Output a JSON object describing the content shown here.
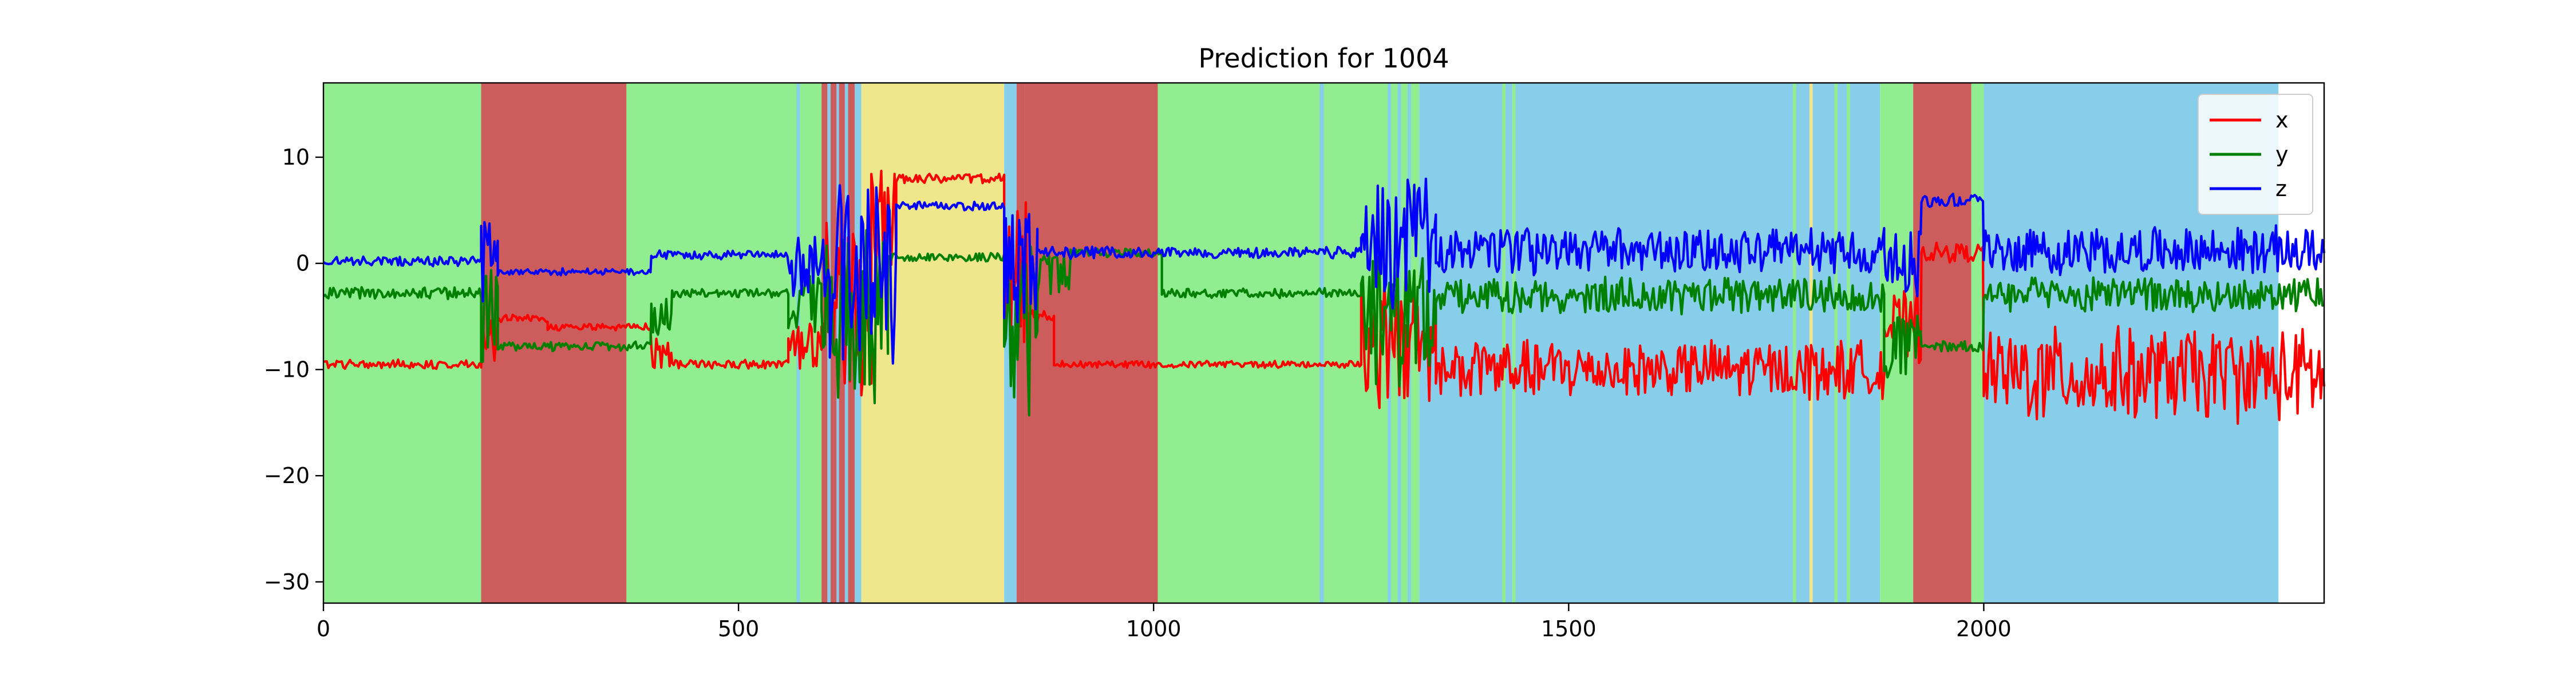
{
  "chart_data": {
    "type": "line",
    "title": "Prediction for 1004",
    "xlabel": "",
    "ylabel": "",
    "xlim": [
      0,
      2410
    ],
    "ylim": [
      -32,
      17
    ],
    "x_ticks": [
      0,
      500,
      1000,
      1500,
      2000
    ],
    "y_ticks": [
      -30,
      -20,
      -10,
      0,
      10
    ],
    "x_tick_labels": [
      "0",
      "500",
      "1000",
      "1500",
      "2000"
    ],
    "y_tick_labels": [
      "−30",
      "−20",
      "−10",
      "0",
      "10"
    ],
    "grid": false,
    "legend_position": "top-right",
    "background_regions": [
      {
        "x0": 0,
        "x1": 190,
        "color": "#90ee90"
      },
      {
        "x0": 190,
        "x1": 365,
        "color": "#cd5c5c"
      },
      {
        "x0": 365,
        "x1": 600,
        "color": "#90ee90"
      },
      {
        "x0": 570,
        "x1": 574,
        "color": "#87ceeb"
      },
      {
        "x0": 600,
        "x1": 640,
        "color": "#cd5c5c"
      },
      {
        "x0": 607,
        "x1": 611,
        "color": "#87ceeb"
      },
      {
        "x0": 618,
        "x1": 621,
        "color": "#87ceeb"
      },
      {
        "x0": 628,
        "x1": 632,
        "color": "#87ceeb"
      },
      {
        "x0": 640,
        "x1": 648,
        "color": "#87ceeb"
      },
      {
        "x0": 648,
        "x1": 820,
        "color": "#f0e68c"
      },
      {
        "x0": 820,
        "x1": 835,
        "color": "#87ceeb"
      },
      {
        "x0": 835,
        "x1": 845,
        "color": "#cd5c5c"
      },
      {
        "x0": 845,
        "x1": 1005,
        "color": "#cd5c5c"
      },
      {
        "x0": 1005,
        "x1": 1320,
        "color": "#90ee90"
      },
      {
        "x0": 1200,
        "x1": 1205,
        "color": "#87ceeb"
      },
      {
        "x0": 1282,
        "x1": 1286,
        "color": "#87ceeb"
      },
      {
        "x0": 1294,
        "x1": 1298,
        "color": "#87ceeb"
      },
      {
        "x0": 1306,
        "x1": 1310,
        "color": "#87ceeb"
      },
      {
        "x0": 1320,
        "x1": 1875,
        "color": "#87ceeb"
      },
      {
        "x0": 1420,
        "x1": 1424,
        "color": "#90ee90"
      },
      {
        "x0": 1432,
        "x1": 1436,
        "color": "#90ee90"
      },
      {
        "x0": 1770,
        "x1": 1774,
        "color": "#90ee90"
      },
      {
        "x0": 1790,
        "x1": 1794,
        "color": "#f0e68c"
      },
      {
        "x0": 1820,
        "x1": 1824,
        "color": "#90ee90"
      },
      {
        "x0": 1835,
        "x1": 1839,
        "color": "#90ee90"
      },
      {
        "x0": 1875,
        "x1": 1915,
        "color": "#90ee90"
      },
      {
        "x0": 1915,
        "x1": 1985,
        "color": "#cd5c5c"
      },
      {
        "x0": 1985,
        "x1": 2000,
        "color": "#90ee90"
      },
      {
        "x0": 2000,
        "x1": 2355,
        "color": "#87ceeb"
      }
    ],
    "series": [
      {
        "name": "x",
        "color": "#ff0000",
        "segments": [
          {
            "x0": 0,
            "x1": 190,
            "base": -9.5,
            "amp": 0.4
          },
          {
            "x0": 190,
            "x1": 210,
            "base": -8.0,
            "amp": 3.0
          },
          {
            "x0": 210,
            "x1": 270,
            "base": -5.2,
            "amp": 0.3
          },
          {
            "x0": 270,
            "x1": 395,
            "base": -6.0,
            "amp": 0.3
          },
          {
            "x0": 395,
            "x1": 420,
            "base": -8.5,
            "amp": 1.5
          },
          {
            "x0": 420,
            "x1": 560,
            "base": -9.5,
            "amp": 0.4
          },
          {
            "x0": 560,
            "x1": 600,
            "base": -8.5,
            "amp": 2.5
          },
          {
            "x0": 600,
            "x1": 660,
            "base": -4.0,
            "amp": 9.0
          },
          {
            "x0": 660,
            "x1": 690,
            "base": 4.0,
            "amp": 6.0
          },
          {
            "x0": 690,
            "x1": 820,
            "base": 8.0,
            "amp": 0.4
          },
          {
            "x0": 820,
            "x1": 850,
            "base": -2.0,
            "amp": 7.0
          },
          {
            "x0": 850,
            "x1": 880,
            "base": -5.0,
            "amp": 0.5
          },
          {
            "x0": 880,
            "x1": 1250,
            "base": -9.5,
            "amp": 0.3
          },
          {
            "x0": 1250,
            "x1": 1340,
            "base": -8.0,
            "amp": 6.0
          },
          {
            "x0": 1340,
            "x1": 1880,
            "base": -10.0,
            "amp": 2.5
          },
          {
            "x0": 1880,
            "x1": 1925,
            "base": -6.0,
            "amp": 3.0
          },
          {
            "x0": 1925,
            "x1": 2000,
            "base": 1.0,
            "amp": 0.8
          },
          {
            "x0": 2000,
            "x1": 2410,
            "base": -10.5,
            "amp": 4.0
          }
        ]
      },
      {
        "name": "y",
        "color": "#008000",
        "segments": [
          {
            "x0": 0,
            "x1": 190,
            "base": -2.8,
            "amp": 0.5
          },
          {
            "x0": 190,
            "x1": 210,
            "base": -5.0,
            "amp": 5.0
          },
          {
            "x0": 210,
            "x1": 395,
            "base": -7.8,
            "amp": 0.4
          },
          {
            "x0": 395,
            "x1": 420,
            "base": -5.0,
            "amp": 2.0
          },
          {
            "x0": 420,
            "x1": 560,
            "base": -2.8,
            "amp": 0.4
          },
          {
            "x0": 560,
            "x1": 600,
            "base": -4.0,
            "amp": 3.0
          },
          {
            "x0": 600,
            "x1": 680,
            "base": -5.0,
            "amp": 8.0
          },
          {
            "x0": 680,
            "x1": 820,
            "base": 0.6,
            "amp": 0.4
          },
          {
            "x0": 820,
            "x1": 860,
            "base": -6.0,
            "amp": 8.0
          },
          {
            "x0": 860,
            "x1": 900,
            "base": -1.0,
            "amp": 2.0
          },
          {
            "x0": 900,
            "x1": 1010,
            "base": 1.0,
            "amp": 0.4
          },
          {
            "x0": 1010,
            "x1": 1250,
            "base": -2.8,
            "amp": 0.4
          },
          {
            "x0": 1250,
            "x1": 1340,
            "base": -5.0,
            "amp": 6.0
          },
          {
            "x0": 1340,
            "x1": 1880,
            "base": -3.0,
            "amp": 1.5
          },
          {
            "x0": 1880,
            "x1": 1925,
            "base": -8.0,
            "amp": 3.0
          },
          {
            "x0": 1925,
            "x1": 2000,
            "base": -7.8,
            "amp": 0.5
          },
          {
            "x0": 2000,
            "x1": 2410,
            "base": -3.0,
            "amp": 1.5
          }
        ]
      },
      {
        "name": "z",
        "color": "#0000ff",
        "segments": [
          {
            "x0": 0,
            "x1": 190,
            "base": 0.2,
            "amp": 0.4
          },
          {
            "x0": 190,
            "x1": 210,
            "base": 0.5,
            "amp": 4.0
          },
          {
            "x0": 210,
            "x1": 395,
            "base": -0.8,
            "amp": 0.3
          },
          {
            "x0": 395,
            "x1": 560,
            "base": 0.8,
            "amp": 0.4
          },
          {
            "x0": 560,
            "x1": 610,
            "base": 0.0,
            "amp": 3.0
          },
          {
            "x0": 610,
            "x1": 690,
            "base": 0.0,
            "amp": 10.0
          },
          {
            "x0": 690,
            "x1": 820,
            "base": 5.4,
            "amp": 0.4
          },
          {
            "x0": 820,
            "x1": 860,
            "base": 0.0,
            "amp": 6.0
          },
          {
            "x0": 860,
            "x1": 1250,
            "base": 1.0,
            "amp": 0.5
          },
          {
            "x0": 1250,
            "x1": 1340,
            "base": 2.0,
            "amp": 6.0
          },
          {
            "x0": 1340,
            "x1": 1880,
            "base": 1.2,
            "amp": 2.0
          },
          {
            "x0": 1880,
            "x1": 1925,
            "base": 0.0,
            "amp": 4.0
          },
          {
            "x0": 1925,
            "x1": 2000,
            "base": 6.0,
            "amp": 0.6
          },
          {
            "x0": 2000,
            "x1": 2410,
            "base": 1.2,
            "amp": 2.0
          }
        ]
      }
    ]
  }
}
